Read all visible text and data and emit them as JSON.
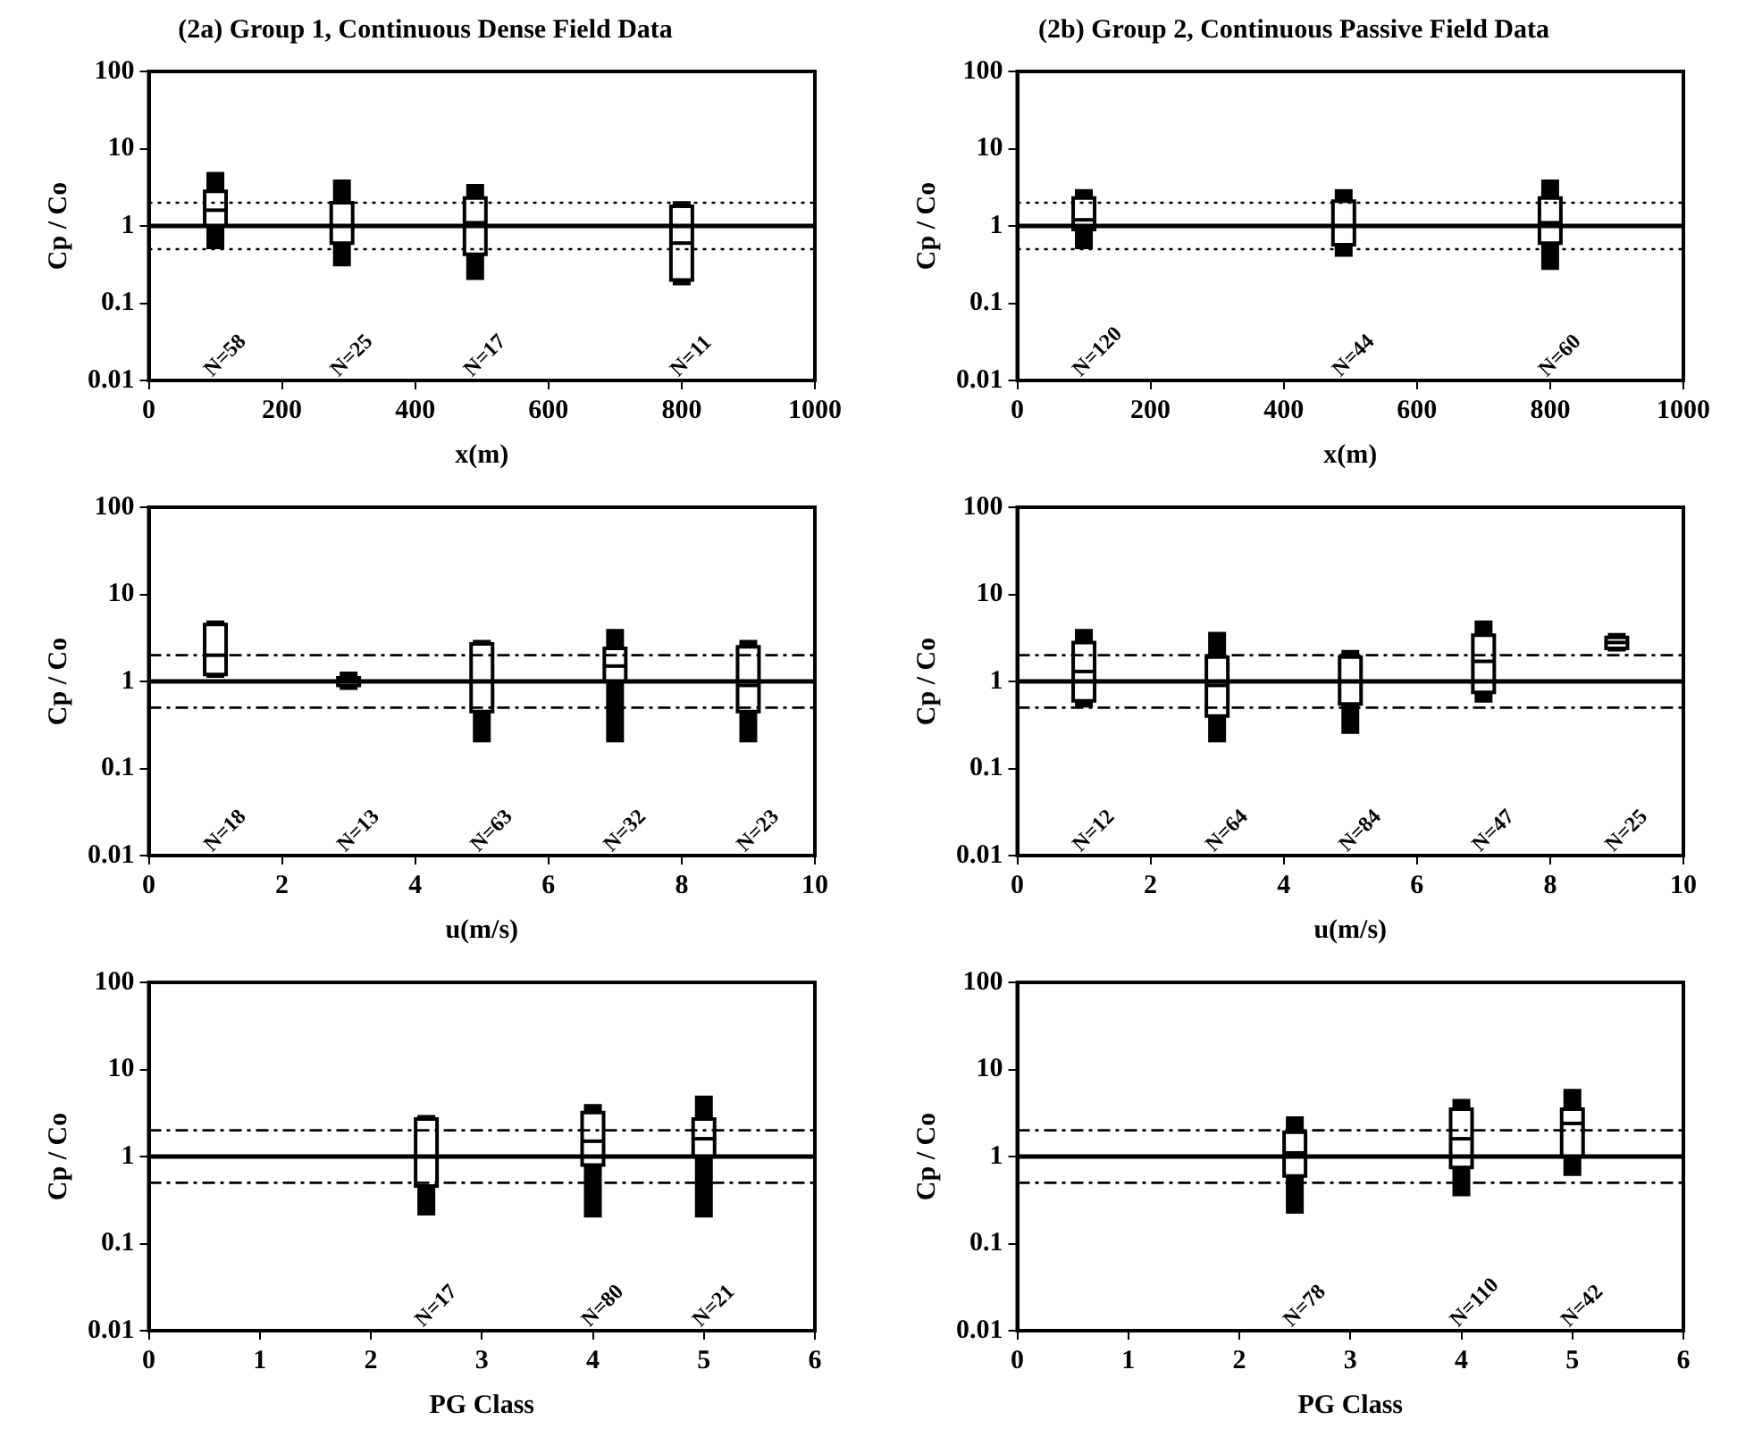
{
  "chart_data": [
    {
      "type": "box",
      "title": "(2a) Group 1, Continuous Dense Field Data",
      "xlabel": "x(m)",
      "ylabel": "Cp / Co",
      "log": "y",
      "color": "#000000",
      "x": [
        100,
        290,
        490,
        800
      ],
      "boxes": [
        {
          "low": 0.5,
          "q1": 1.0,
          "median": 1.6,
          "q3": 2.8,
          "high": 5
        },
        {
          "low": 0.3,
          "q1": 0.6,
          "median": 1.0,
          "q3": 2,
          "high": 4
        },
        {
          "low": 0.2,
          "q1": 0.43,
          "median": 1.1,
          "q3": 2.3,
          "high": 3.5
        },
        {
          "low": 0.17,
          "q1": 0.2,
          "median": 0.6,
          "q3": 1.8,
          "high": 2.1
        }
      ],
      "xlim": [
        0,
        1000
      ],
      "xticks": [
        0,
        200,
        400,
        600,
        800,
        1000
      ],
      "ylim": [
        0.01,
        100
      ],
      "yticks": [
        0.01,
        0.1,
        1,
        10,
        100
      ],
      "ref_lines": [
        {
          "axis": "y",
          "value": 1,
          "line_style": "solid"
        },
        {
          "axis": "y",
          "value": 2,
          "line_style": "dotted"
        },
        {
          "axis": "y",
          "value": 0.5,
          "line_style": "dotted"
        }
      ],
      "annotations": [
        "N=58",
        "N=25",
        "N=17",
        "N=11"
      ]
    },
    {
      "type": "box",
      "title": "(2b) Group 2, Continuous Passive Field Data",
      "xlabel": "x(m)",
      "ylabel": "Cp / Co",
      "log": "y",
      "color": "#000000",
      "x": [
        100,
        490,
        800
      ],
      "boxes": [
        {
          "low": 0.5,
          "q1": 0.9,
          "median": 1.2,
          "q3": 2.3,
          "high": 3
        },
        {
          "low": 0.4,
          "q1": 0.57,
          "median": 1.0,
          "q3": 2.1,
          "high": 3
        },
        {
          "low": 0.27,
          "q1": 0.6,
          "median": 1.1,
          "q3": 2.3,
          "high": 4
        }
      ],
      "xlim": [
        0,
        1000
      ],
      "xticks": [
        0,
        200,
        400,
        600,
        800,
        1000
      ],
      "ylim": [
        0.01,
        100
      ],
      "yticks": [
        0.01,
        0.1,
        1,
        10,
        100
      ],
      "ref_lines": [
        {
          "axis": "y",
          "value": 1,
          "line_style": "solid"
        },
        {
          "axis": "y",
          "value": 2,
          "line_style": "dotted"
        },
        {
          "axis": "y",
          "value": 0.5,
          "line_style": "dotted"
        }
      ],
      "annotations": [
        "N=120",
        "N=44",
        "N=60"
      ]
    },
    {
      "type": "box",
      "xlabel": "u(m/s)",
      "ylabel": "Cp / Co",
      "log": "y",
      "color": "#000000",
      "x": [
        1,
        3,
        5,
        7,
        9
      ],
      "boxes": [
        {
          "low": 1.1,
          "q1": 1.2,
          "median": 2,
          "q3": 4.5,
          "high": 5
        },
        {
          "low": 0.8,
          "q1": 0.9,
          "median": 1,
          "q3": 1.1,
          "high": 1.3
        },
        {
          "low": 0.2,
          "q1": 0.45,
          "median": 1,
          "q3": 2.7,
          "high": 3
        },
        {
          "low": 0.2,
          "q1": 1.0,
          "median": 1.5,
          "q3": 2.4,
          "high": 4
        },
        {
          "low": 0.2,
          "q1": 0.45,
          "median": 0.9,
          "q3": 2.5,
          "high": 3
        }
      ],
      "xlim": [
        0,
        10
      ],
      "xticks": [
        0,
        2,
        4,
        6,
        8,
        10
      ],
      "ylim": [
        0.01,
        100
      ],
      "yticks": [
        0.01,
        0.1,
        1,
        10,
        100
      ],
      "ref_lines": [
        {
          "axis": "y",
          "value": 1,
          "line_style": "solid"
        },
        {
          "axis": "y",
          "value": 2,
          "line_style": "dashed"
        },
        {
          "axis": "y",
          "value": 0.5,
          "line_style": "dashed"
        }
      ],
      "annotations": [
        "N=18",
        "N=13",
        "N=63",
        "N=32",
        "N=23"
      ]
    },
    {
      "type": "box",
      "xlabel": "u(m/s)",
      "ylabel": "Cp / Co",
      "log": "y",
      "color": "#000000",
      "x": [
        1,
        3,
        5,
        7,
        9
      ],
      "boxes": [
        {
          "low": 0.5,
          "q1": 0.6,
          "median": 1.3,
          "q3": 2.8,
          "high": 4
        },
        {
          "low": 0.2,
          "q1": 0.4,
          "median": 0.9,
          "q3": 1.9,
          "high": 3.7
        },
        {
          "low": 0.25,
          "q1": 0.55,
          "median": 1,
          "q3": 1.9,
          "high": 2.3
        },
        {
          "low": 0.57,
          "q1": 0.75,
          "median": 1.7,
          "q3": 3.4,
          "high": 5
        },
        {
          "low": 2.2,
          "q1": 2.4,
          "median": 2.8,
          "q3": 3.2,
          "high": 3.6
        }
      ],
      "xlim": [
        0,
        10
      ],
      "xticks": [
        0,
        2,
        4,
        6,
        8,
        10
      ],
      "ylim": [
        0.01,
        100
      ],
      "yticks": [
        0.01,
        0.1,
        1,
        10,
        100
      ],
      "ref_lines": [
        {
          "axis": "y",
          "value": 1,
          "line_style": "solid"
        },
        {
          "axis": "y",
          "value": 2,
          "line_style": "dashed"
        },
        {
          "axis": "y",
          "value": 0.5,
          "line_style": "dashed"
        }
      ],
      "annotations": [
        "N=12",
        "N=64",
        "N=84",
        "N=47",
        "N=25"
      ]
    },
    {
      "type": "box",
      "xlabel": "PG Class",
      "ylabel": "Cp / Co",
      "log": "y",
      "color": "#000000",
      "x": [
        2.5,
        4,
        5
      ],
      "boxes": [
        {
          "low": 0.21,
          "q1": 0.46,
          "median": 1,
          "q3": 2.7,
          "high": 3
        },
        {
          "low": 0.2,
          "q1": 0.8,
          "median": 1.5,
          "q3": 3.2,
          "high": 4
        },
        {
          "low": 0.2,
          "q1": 1.0,
          "median": 1.6,
          "q3": 2.7,
          "high": 5
        }
      ],
      "xlim": [
        0,
        6
      ],
      "xticks": [
        0,
        1,
        2,
        3,
        4,
        5,
        6
      ],
      "ylim": [
        0.01,
        100
      ],
      "yticks": [
        0.01,
        0.1,
        1,
        10,
        100
      ],
      "ref_lines": [
        {
          "axis": "y",
          "value": 1,
          "line_style": "solid"
        },
        {
          "axis": "y",
          "value": 2,
          "line_style": "dashed"
        },
        {
          "axis": "y",
          "value": 0.5,
          "line_style": "dashed"
        }
      ],
      "annotations": [
        "N=17",
        "N=80",
        "N=21"
      ]
    },
    {
      "type": "box",
      "xlabel": "PG Class",
      "ylabel": "Cp / Co",
      "log": "y",
      "color": "#000000",
      "x": [
        2.5,
        4,
        5
      ],
      "boxes": [
        {
          "low": 0.22,
          "q1": 0.6,
          "median": 1.1,
          "q3": 1.9,
          "high": 2.9
        },
        {
          "low": 0.35,
          "q1": 0.75,
          "median": 1.6,
          "q3": 3.5,
          "high": 4.6
        },
        {
          "low": 0.6,
          "q1": 1.0,
          "median": 2.4,
          "q3": 3.5,
          "high": 6
        }
      ],
      "xlim": [
        0,
        6
      ],
      "xticks": [
        0,
        1,
        2,
        3,
        4,
        5,
        6
      ],
      "ylim": [
        0.01,
        100
      ],
      "yticks": [
        0.01,
        0.1,
        1,
        10,
        100
      ],
      "ref_lines": [
        {
          "axis": "y",
          "value": 1,
          "line_style": "solid"
        },
        {
          "axis": "y",
          "value": 2,
          "line_style": "dashed"
        },
        {
          "axis": "y",
          "value": 0.5,
          "line_style": "dashed"
        }
      ],
      "annotations": [
        "N=78",
        "N=110",
        "N=42"
      ]
    }
  ]
}
